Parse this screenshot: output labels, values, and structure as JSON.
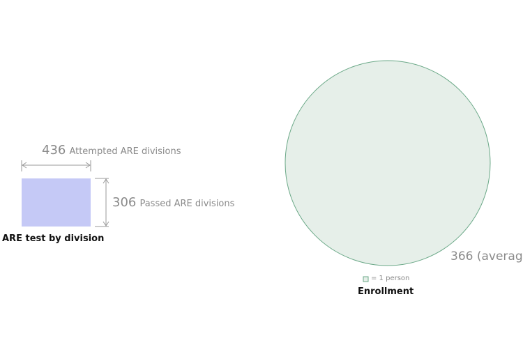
{
  "are_test": {
    "attempted_value": "436",
    "attempted_label": "Attempted ARE divisions",
    "passed_value": "306",
    "passed_label": "Passed ARE divisions",
    "caption": "ARE test by division",
    "fill_color": "#c5c9f6"
  },
  "enrollment": {
    "value_text": "366 (averag",
    "legend_text": "= 1 person",
    "caption": "Enrollment",
    "fill_color": "#e6efe9",
    "stroke_color": "#6aa887"
  }
}
